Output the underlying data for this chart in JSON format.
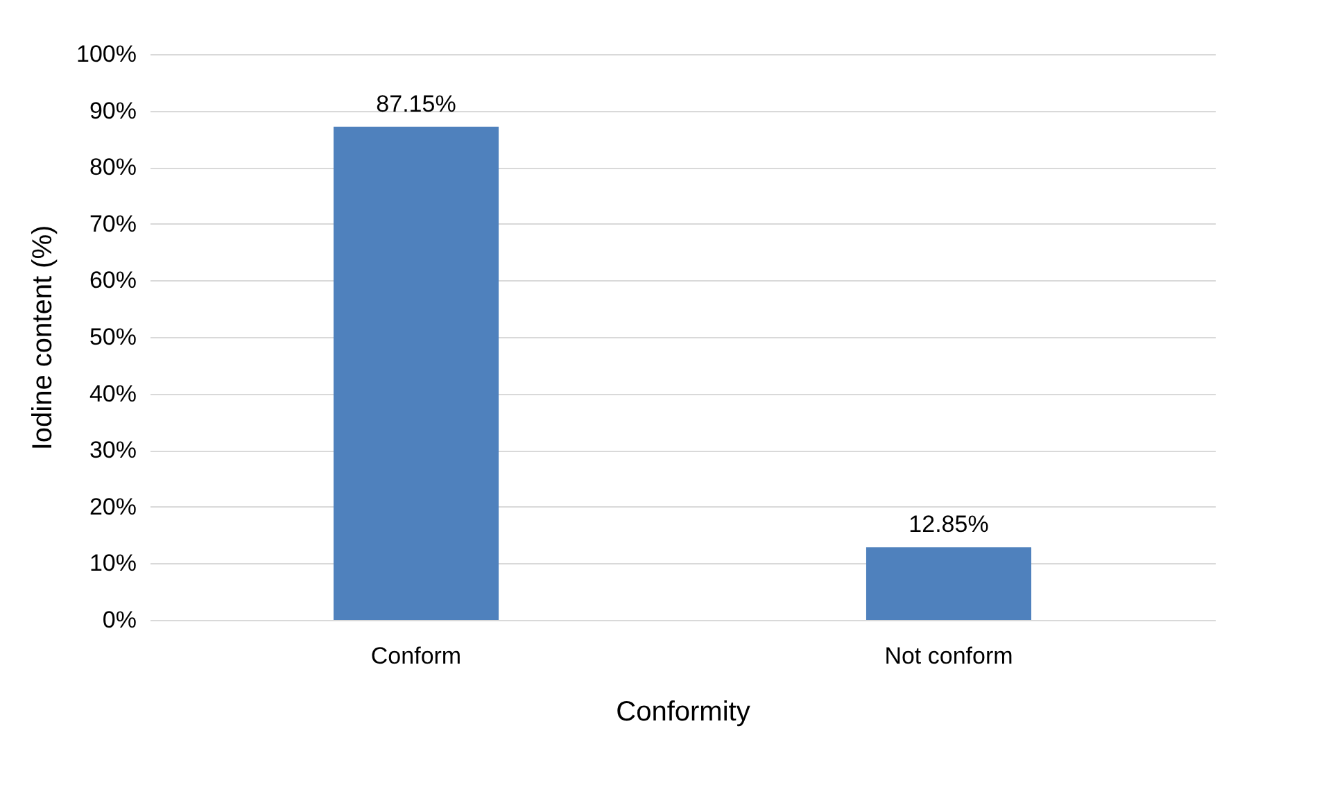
{
  "chart_data": {
    "type": "bar",
    "xlabel": "Conformity",
    "ylabel": "Iodine content (%)",
    "categories": [
      "Conform",
      "Not conform"
    ],
    "values": [
      87.15,
      12.85
    ],
    "value_labels": [
      "87.15%",
      "12.85%"
    ],
    "color": "#4f81bd",
    "ylim": [
      0,
      100
    ],
    "yticks": [
      {
        "value": 0,
        "label": "0%"
      },
      {
        "value": 10,
        "label": "10%"
      },
      {
        "value": 20,
        "label": "20%"
      },
      {
        "value": 30,
        "label": "30%"
      },
      {
        "value": 40,
        "label": "40%"
      },
      {
        "value": 50,
        "label": "50%"
      },
      {
        "value": 60,
        "label": "60%"
      },
      {
        "value": 70,
        "label": "70%"
      },
      {
        "value": 80,
        "label": "80%"
      },
      {
        "value": 90,
        "label": "90%"
      },
      {
        "value": 100,
        "label": "100%"
      }
    ],
    "grid": "y"
  }
}
